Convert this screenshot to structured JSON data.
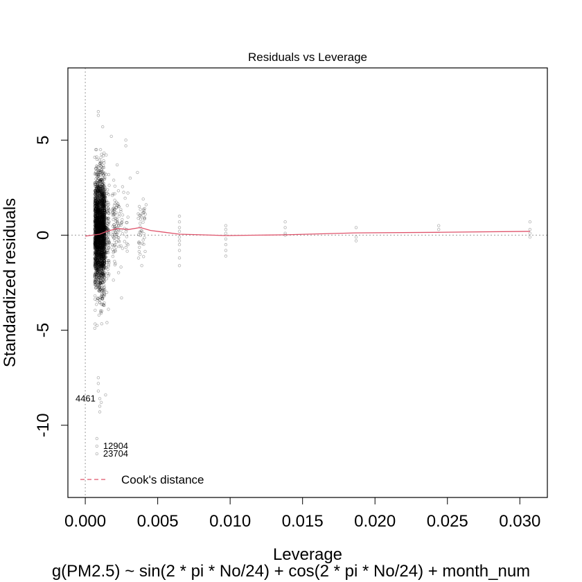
{
  "chart_data": {
    "type": "scatter",
    "title": "Residuals vs Leverage",
    "xlabel": "Leverage",
    "ylabel": "Standardized residuals",
    "subtitle": "g(PM2.5) ~ sin(2 * pi * No/24) + cos(2 * pi * No/24) + month_num",
    "xlim": [
      -0.0012,
      0.0319
    ],
    "ylim": [
      -13.8,
      8.8
    ],
    "x_ticks": [
      0.0,
      0.005,
      0.01,
      0.015,
      0.02,
      0.025,
      0.03
    ],
    "x_tick_labels": [
      "0.000",
      "0.005",
      "0.010",
      "0.015",
      "0.020",
      "0.025",
      "0.030"
    ],
    "y_ticks": [
      -10,
      -5,
      0,
      5
    ],
    "y_tick_labels": [
      "-10",
      "-5",
      "0",
      "5"
    ],
    "grid": false,
    "reference_lines": {
      "h": 0,
      "v": 0
    },
    "legend": {
      "position": "bottom-left",
      "label": "Cook's distance",
      "color": "#DF536B"
    },
    "point_color": "#000000",
    "smooth_color": "#DF536B",
    "point_groups": [
      {
        "leverage": 0.001,
        "n": 2600,
        "residual_sd": 1.45,
        "residual_mean": 0.15
      },
      {
        "leverage": 0.0014,
        "n": 220,
        "residual_sd": 1.1,
        "residual_mean": 0.3
      },
      {
        "leverage": 0.0021,
        "n": 90,
        "residual_sd": 1.1,
        "residual_mean": 0.4
      },
      {
        "leverage": 0.0027,
        "n": 30,
        "residual_sd": 1.0,
        "residual_mean": 0.5
      },
      {
        "leverage": 0.0039,
        "n": 40,
        "residual_sd": 0.9,
        "residual_mean": 0.35
      }
    ],
    "points": [
      {
        "x": 0.0009,
        "y": 6.5
      },
      {
        "x": 0.0009,
        "y": 6.3
      },
      {
        "x": 0.0012,
        "y": 5.7
      },
      {
        "x": 0.0018,
        "y": 5.2
      },
      {
        "x": 0.0028,
        "y": 5.0
      },
      {
        "x": 0.0028,
        "y": 4.7
      },
      {
        "x": 0.0036,
        "y": 3.3
      },
      {
        "x": 0.0022,
        "y": 3.7
      },
      {
        "x": 0.0031,
        "y": 3.0
      },
      {
        "x": 0.0042,
        "y": 1.6
      },
      {
        "x": 0.004,
        "y": 1.9
      },
      {
        "x": 0.0041,
        "y": 1.4
      },
      {
        "x": 0.0065,
        "y": 1.0
      },
      {
        "x": 0.0065,
        "y": 0.7
      },
      {
        "x": 0.0065,
        "y": 0.4
      },
      {
        "x": 0.0065,
        "y": 0.2
      },
      {
        "x": 0.0065,
        "y": -0.1
      },
      {
        "x": 0.0065,
        "y": -0.3
      },
      {
        "x": 0.0065,
        "y": -0.5
      },
      {
        "x": 0.0065,
        "y": -0.8
      },
      {
        "x": 0.0065,
        "y": -1.2
      },
      {
        "x": 0.0065,
        "y": -1.6
      },
      {
        "x": 0.0097,
        "y": 0.5
      },
      {
        "x": 0.0097,
        "y": 0.3
      },
      {
        "x": 0.0097,
        "y": 0.1
      },
      {
        "x": 0.0097,
        "y": -0.2
      },
      {
        "x": 0.0097,
        "y": -0.5
      },
      {
        "x": 0.0097,
        "y": -0.8
      },
      {
        "x": 0.0097,
        "y": -1.1
      },
      {
        "x": 0.0138,
        "y": 0.7
      },
      {
        "x": 0.0138,
        "y": 0.4
      },
      {
        "x": 0.0138,
        "y": 0.1
      },
      {
        "x": 0.0138,
        "y": 0.0
      },
      {
        "x": 0.0187,
        "y": 0.4
      },
      {
        "x": 0.0187,
        "y": -0.1
      },
      {
        "x": 0.0187,
        "y": -0.3
      },
      {
        "x": 0.0244,
        "y": 0.5
      },
      {
        "x": 0.0244,
        "y": 0.3
      },
      {
        "x": 0.0307,
        "y": 0.7
      },
      {
        "x": 0.0307,
        "y": 0.3
      },
      {
        "x": 0.0307,
        "y": 0.1
      },
      {
        "x": 0.0307,
        "y": -0.1
      },
      {
        "x": 0.0009,
        "y": -7.5
      },
      {
        "x": 0.0009,
        "y": -7.8
      },
      {
        "x": 0.0009,
        "y": -8.2
      },
      {
        "x": 0.001,
        "y": -8.6
      },
      {
        "x": 0.001,
        "y": -9.0
      },
      {
        "x": 0.001,
        "y": -9.3
      },
      {
        "x": 0.0014,
        "y": -8.4
      },
      {
        "x": 0.0011,
        "y": -8.8
      },
      {
        "x": 0.0008,
        "y": -10.7
      },
      {
        "x": 0.0008,
        "y": -11.1
      },
      {
        "x": 0.0008,
        "y": -11.5
      },
      {
        "x": 0.0015,
        "y": -4.6
      },
      {
        "x": 0.0016,
        "y": -3.9
      },
      {
        "x": 0.0025,
        "y": -3.3
      },
      {
        "x": 0.0039,
        "y": -1.6
      }
    ],
    "smooth_line": [
      {
        "x": 0.0,
        "y": -0.05
      },
      {
        "x": 0.001,
        "y": 0.05
      },
      {
        "x": 0.0015,
        "y": 0.2
      },
      {
        "x": 0.0022,
        "y": 0.35
      },
      {
        "x": 0.003,
        "y": 0.3
      },
      {
        "x": 0.0038,
        "y": 0.4
      },
      {
        "x": 0.0045,
        "y": 0.25
      },
      {
        "x": 0.0055,
        "y": 0.15
      },
      {
        "x": 0.0065,
        "y": 0.05
      },
      {
        "x": 0.008,
        "y": 0.02
      },
      {
        "x": 0.0097,
        "y": -0.02
      },
      {
        "x": 0.0138,
        "y": 0.02
      },
      {
        "x": 0.0187,
        "y": 0.12
      },
      {
        "x": 0.0244,
        "y": 0.15
      },
      {
        "x": 0.0307,
        "y": 0.2
      }
    ],
    "annotations": [
      {
        "label": "4461",
        "x": 0.0009,
        "y": -8.6
      },
      {
        "label": "12904",
        "x": 0.0009,
        "y": -11.1
      },
      {
        "label": "23704",
        "x": 0.0009,
        "y": -11.5
      }
    ]
  }
}
